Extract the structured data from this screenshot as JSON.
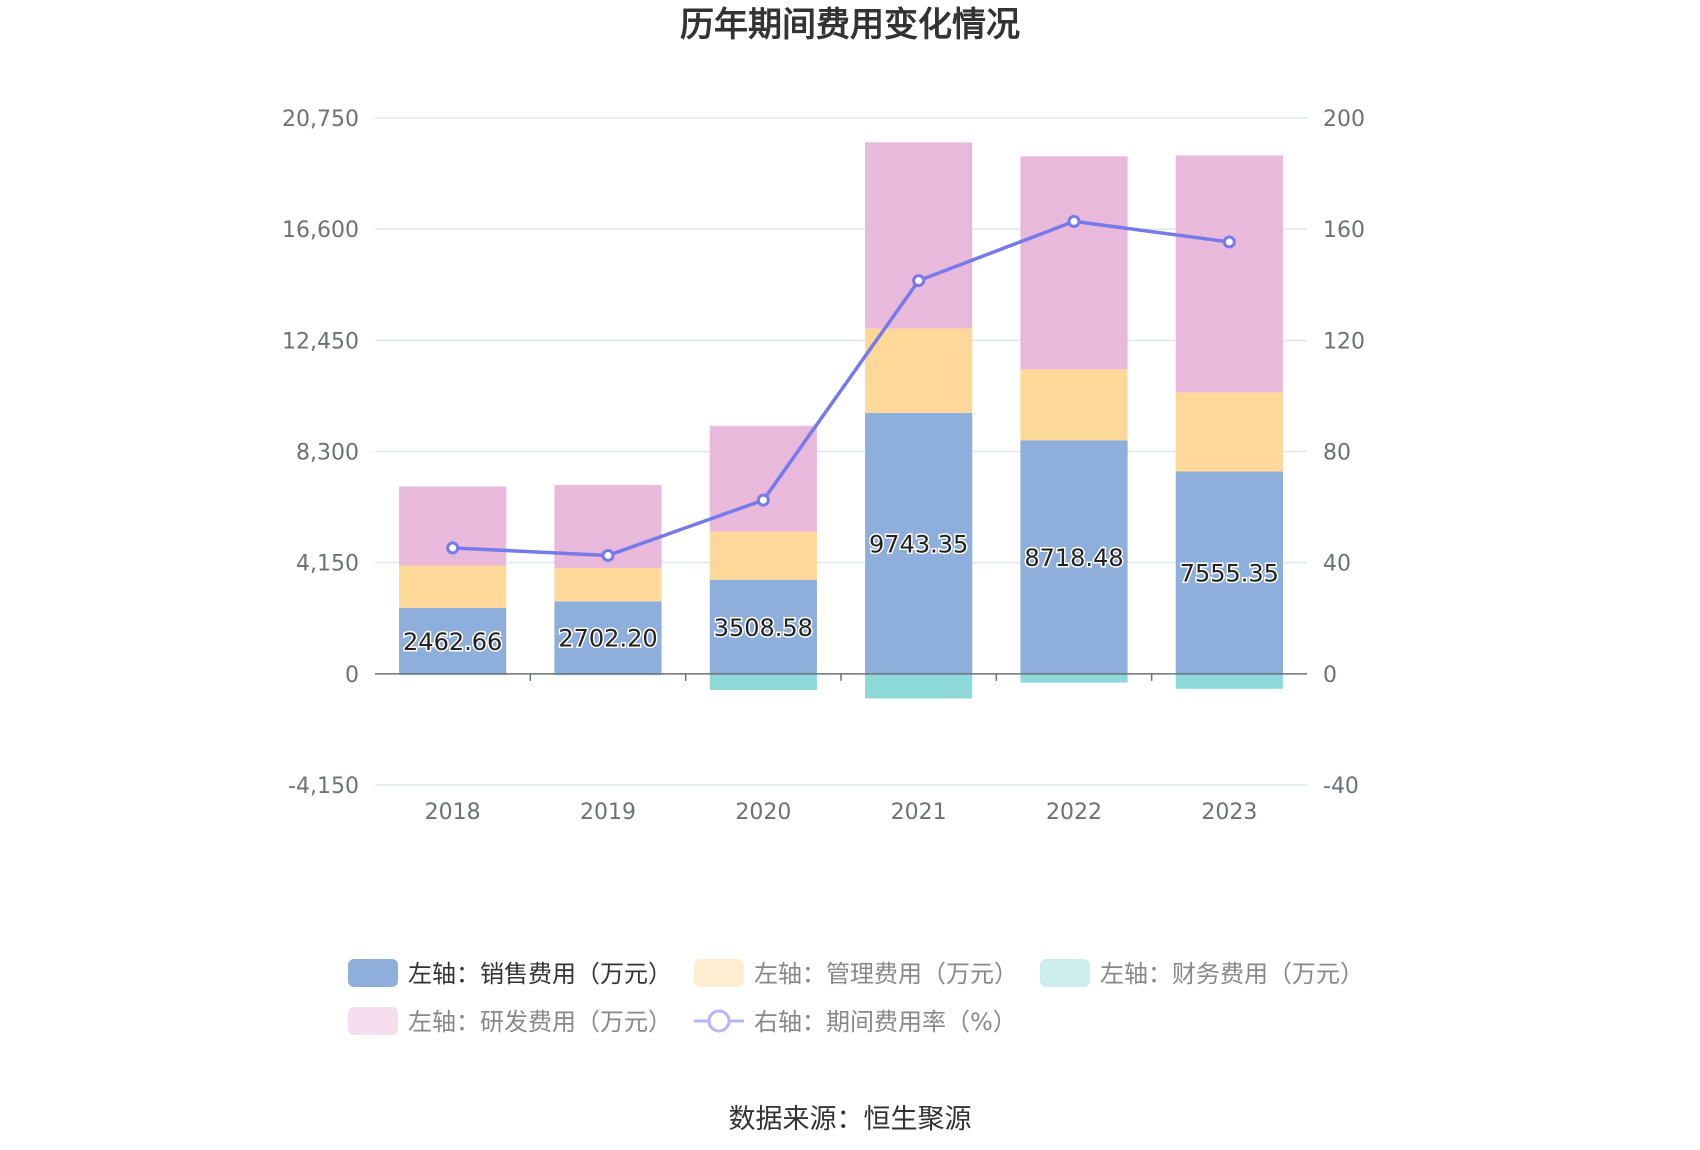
{
  "chart_data": {
    "type": "bar",
    "title": "历年期间费用变化情况",
    "categories": [
      "2018",
      "2019",
      "2020",
      "2021",
      "2022",
      "2023"
    ],
    "y_left": {
      "ticks": [
        "20,750",
        "16,600",
        "12,450",
        "8,300",
        "4,150",
        "0",
        "-4,150"
      ],
      "min": -4150,
      "max": 20750
    },
    "y_right": {
      "ticks": [
        "200",
        "160",
        "120",
        "80",
        "40",
        "0",
        "-40"
      ],
      "min": -40,
      "max": 200
    },
    "series": [
      {
        "name": "左轴：销售费用（万元）",
        "type": "bar",
        "color": "#8eaedb",
        "values": [
          2462.66,
          2702.2,
          3508.58,
          9743.35,
          8718.48,
          7555.35
        ],
        "labels": [
          "2462.66",
          "2702.20",
          "3508.58",
          "9743.35",
          "8718.48",
          "7555.35"
        ]
      },
      {
        "name": "左轴：管理费用（万元）",
        "type": "bar",
        "color": "#fdd899",
        "values": [
          1580,
          1250,
          1800,
          3150,
          2650,
          2950
        ]
      },
      {
        "name": "左轴：财务费用（万元）",
        "type": "bar",
        "color": "#8dd8d8",
        "values": [
          -40,
          -50,
          -600,
          -920,
          -330,
          -560
        ]
      },
      {
        "name": "左轴：研发费用（万元）",
        "type": "bar",
        "color": "#e8b9da",
        "values": [
          2950,
          3100,
          3950,
          6950,
          7950,
          8850
        ]
      },
      {
        "name": "右轴：期间费用率（%）",
        "type": "line",
        "color": "#7479ec",
        "values": [
          45.3,
          42.6,
          62.5,
          141.5,
          162.8,
          155.4
        ]
      }
    ],
    "legend_placement": "bottom",
    "grid": true
  },
  "source": "数据来源：恒生聚源"
}
